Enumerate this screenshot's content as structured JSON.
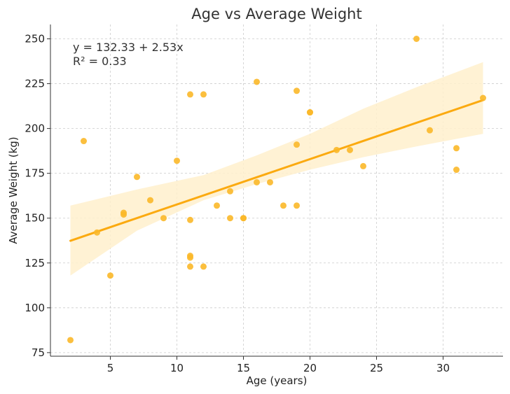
{
  "chart_data": {
    "type": "scatter",
    "title": "Age vs Average Weight",
    "xlabel": "Age (years)",
    "ylabel": "Average Weight (kg)",
    "xlim": [
      0.5,
      34.5
    ],
    "ylim": [
      73,
      258
    ],
    "xticks": [
      5,
      10,
      15,
      20,
      25,
      30
    ],
    "yticks": [
      75,
      100,
      125,
      150,
      175,
      200,
      225,
      250
    ],
    "grid": true,
    "points": [
      {
        "x": 2,
        "y": 82
      },
      {
        "x": 3,
        "y": 193
      },
      {
        "x": 4,
        "y": 142
      },
      {
        "x": 5,
        "y": 118
      },
      {
        "x": 6,
        "y": 153
      },
      {
        "x": 6,
        "y": 152
      },
      {
        "x": 7,
        "y": 173
      },
      {
        "x": 8,
        "y": 160
      },
      {
        "x": 9,
        "y": 150
      },
      {
        "x": 10,
        "y": 182
      },
      {
        "x": 11,
        "y": 219
      },
      {
        "x": 11,
        "y": 149
      },
      {
        "x": 11,
        "y": 129
      },
      {
        "x": 11,
        "y": 128
      },
      {
        "x": 11,
        "y": 123
      },
      {
        "x": 12,
        "y": 219
      },
      {
        "x": 12,
        "y": 123
      },
      {
        "x": 13,
        "y": 157
      },
      {
        "x": 14,
        "y": 165
      },
      {
        "x": 14,
        "y": 150
      },
      {
        "x": 15,
        "y": 150
      },
      {
        "x": 15,
        "y": 150
      },
      {
        "x": 16,
        "y": 226
      },
      {
        "x": 16,
        "y": 170
      },
      {
        "x": 17,
        "y": 170
      },
      {
        "x": 18,
        "y": 157
      },
      {
        "x": 19,
        "y": 221
      },
      {
        "x": 19,
        "y": 191
      },
      {
        "x": 19,
        "y": 157
      },
      {
        "x": 20,
        "y": 209
      },
      {
        "x": 20,
        "y": 209
      },
      {
        "x": 22,
        "y": 188
      },
      {
        "x": 23,
        "y": 188
      },
      {
        "x": 24,
        "y": 179
      },
      {
        "x": 28,
        "y": 250
      },
      {
        "x": 29,
        "y": 199
      },
      {
        "x": 31,
        "y": 189
      },
      {
        "x": 31,
        "y": 177
      },
      {
        "x": 33,
        "y": 217
      }
    ],
    "regression": {
      "intercept": 132.33,
      "slope": 2.53,
      "x_range": [
        2,
        33
      ],
      "ci_lower": [
        [
          2,
          118
        ],
        [
          7,
          143
        ],
        [
          12,
          160
        ],
        [
          16,
          169
        ],
        [
          20,
          177
        ],
        [
          24,
          184
        ],
        [
          28,
          190
        ],
        [
          33,
          197
        ]
      ],
      "ci_upper": [
        [
          2,
          157
        ],
        [
          7,
          166
        ],
        [
          12,
          174
        ],
        [
          16,
          185
        ],
        [
          20,
          197
        ],
        [
          24,
          211
        ],
        [
          28,
          223
        ],
        [
          33,
          237
        ]
      ]
    },
    "annotation": {
      "equation": "y = 132.33 + 2.53x",
      "r_squared": "R² = 0.33"
    },
    "colors": {
      "points": "#fbb829",
      "line": "#fbaa10",
      "band": "#fff0cc"
    }
  }
}
